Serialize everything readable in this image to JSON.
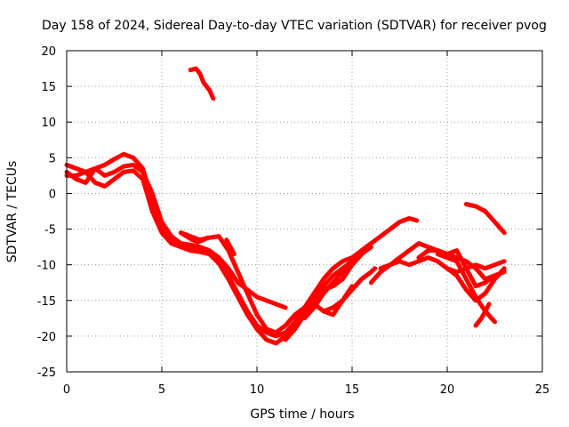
{
  "chart_data": {
    "type": "line",
    "title": "Day 158 of 2024, Sidereal Day-to-day VTEC variation (SDTVAR) for receiver pvog",
    "xlabel": "GPS time / hours",
    "ylabel": "SDTVAR / TECUs",
    "xlim": [
      0,
      25
    ],
    "ylim": [
      -25,
      20
    ],
    "xticks": [
      "0",
      "5",
      "10",
      "15",
      "20",
      "25"
    ],
    "yticks": [
      "20",
      "15",
      "10",
      "5",
      "0",
      "-5",
      "-10",
      "-15",
      "-20",
      "-25"
    ],
    "grid": true,
    "line_color": "#ff0000",
    "series": [
      {
        "name": "s1",
        "x": [
          0.0,
          0.5,
          1.0,
          1.5,
          2.0,
          2.5,
          3.0,
          3.5,
          4.0,
          4.5,
          5.0,
          5.5,
          6.0,
          6.5,
          7.0,
          7.5,
          8.0,
          8.5,
          9.0,
          9.5,
          10.0,
          10.5,
          11.0,
          11.5,
          12.0,
          12.5,
          13.0,
          13.5,
          14.0,
          14.5,
          15.0,
          15.5,
          16.0
        ],
        "y": [
          4.0,
          3.5,
          3.0,
          3.5,
          4.0,
          4.8,
          5.5,
          5.0,
          3.5,
          -1.0,
          -4.5,
          -6.5,
          -7.2,
          -7.5,
          -7.8,
          -8.5,
          -9.5,
          -11.5,
          -14.0,
          -16.5,
          -18.5,
          -19.5,
          -20.0,
          -19.5,
          -18.0,
          -16.0,
          -14.0,
          -12.0,
          -10.5,
          -9.5,
          -9.0,
          -8.0,
          -7.0
        ]
      },
      {
        "name": "s2",
        "x": [
          0.0,
          0.5,
          1.0,
          1.5,
          2.0,
          2.5,
          3.0,
          3.5,
          4.0,
          4.5,
          5.0,
          5.5,
          6.0,
          6.5,
          7.0,
          7.5,
          8.0,
          8.5,
          9.0,
          9.5,
          10.0,
          10.5,
          11.0,
          11.5,
          12.0,
          12.5,
          13.0,
          13.5,
          14.0,
          14.5,
          15.0,
          15.5,
          16.0
        ],
        "y": [
          2.5,
          2.5,
          3.0,
          1.5,
          1.0,
          2.0,
          3.0,
          3.2,
          2.0,
          -2.5,
          -5.5,
          -7.0,
          -7.5,
          -8.0,
          -8.2,
          -8.5,
          -9.8,
          -12.0,
          -14.5,
          -17.0,
          -19.0,
          -20.5,
          -21.0,
          -20.0,
          -18.0,
          -16.0,
          -15.0,
          -13.5,
          -13.0,
          -12.0,
          -10.0,
          -8.5,
          -7.5
        ]
      },
      {
        "name": "s3",
        "x": [
          0.0,
          0.5,
          1.0,
          1.5,
          2.0,
          2.5,
          3.0,
          3.5,
          4.0,
          4.5,
          5.0,
          5.5,
          6.0,
          6.5,
          7.0,
          7.5,
          8.0,
          8.5,
          9.0,
          9.5,
          10.0,
          10.5,
          11.0,
          11.5
        ],
        "y": [
          3.0,
          2.0,
          1.5,
          3.5,
          2.5,
          3.0,
          3.8,
          4.0,
          3.0,
          0.0,
          -4.0,
          -6.0,
          -7.0,
          -7.2,
          -7.5,
          -8.0,
          -9.0,
          -10.5,
          -12.5,
          -13.5,
          -14.5,
          -15.0,
          -15.5,
          -16.0
        ]
      },
      {
        "name": "s4",
        "x": [
          6.0,
          6.5,
          7.0,
          7.5,
          8.0,
          8.5,
          9.0,
          9.5,
          10.0,
          10.5,
          11.0,
          11.5,
          12.0,
          12.5,
          13.0,
          13.5,
          14.0,
          14.5,
          15.0
        ],
        "y": [
          -5.5,
          -6.0,
          -6.5,
          -6.2,
          -6.0,
          -8.0,
          -11.0,
          -14.0,
          -17.0,
          -19.0,
          -19.5,
          -18.5,
          -17.0,
          -16.0,
          -15.5,
          -16.5,
          -17.0,
          -15.0,
          -13.0
        ]
      },
      {
        "name": "s5",
        "x": [
          11.5,
          12.0,
          12.5,
          13.0,
          13.5,
          14.0,
          14.5,
          15.0,
          15.5,
          16.0,
          16.5,
          17.0,
          17.5,
          18.0,
          18.4
        ],
        "y": [
          -20.5,
          -19.0,
          -17.0,
          -15.0,
          -13.0,
          -11.5,
          -10.5,
          -9.5,
          -8.0,
          -7.0,
          -6.0,
          -5.0,
          -4.0,
          -3.5,
          -3.8
        ]
      },
      {
        "name": "s6",
        "x": [
          12.5,
          13.0,
          13.5,
          14.0,
          14.5,
          15.0,
          15.5,
          15.8
        ],
        "y": [
          -17.5,
          -16.0,
          -14.0,
          -12.5,
          -11.0,
          -10.0,
          -8.5,
          -7.5
        ]
      },
      {
        "name": "s7",
        "x": [
          13.5,
          14.0,
          14.5,
          15.0,
          15.5,
          16.0,
          16.2
        ],
        "y": [
          -16.5,
          -16.0,
          -15.0,
          -13.5,
          -12.0,
          -11.0,
          -10.5
        ]
      },
      {
        "name": "s8",
        "x": [
          16.0,
          16.5,
          17.0,
          17.5,
          18.0,
          18.5,
          19.0,
          19.5,
          20.0,
          20.5,
          21.0,
          21.5,
          22.0,
          22.5,
          23.0
        ],
        "y": [
          -12.5,
          -11.0,
          -10.0,
          -9.5,
          -10.0,
          -9.5,
          -9.0,
          -9.5,
          -10.5,
          -11.0,
          -10.5,
          -10.0,
          -10.5,
          -10.0,
          -9.5
        ]
      },
      {
        "name": "s9",
        "x": [
          16.5,
          17.0,
          17.5,
          18.0,
          18.5,
          19.0,
          19.5,
          20.0,
          20.5,
          21.0,
          21.5,
          22.0,
          22.5,
          23.0
        ],
        "y": [
          -10.5,
          -10.0,
          -9.0,
          -8.0,
          -7.0,
          -7.5,
          -8.0,
          -8.5,
          -9.0,
          -9.5,
          -10.5,
          -12.0,
          -11.5,
          -11.0
        ]
      },
      {
        "name": "s10",
        "x": [
          18.5,
          19.0,
          19.5,
          20.0,
          20.5,
          21.0,
          21.5,
          22.0,
          22.5,
          23.0
        ],
        "y": [
          -9.0,
          -8.0,
          -8.0,
          -8.5,
          -8.0,
          -10.5,
          -13.0,
          -12.5,
          -11.5,
          -11.0
        ]
      },
      {
        "name": "s11",
        "x": [
          19.5,
          20.0,
          20.5,
          21.0,
          21.5,
          22.0,
          22.5
        ],
        "y": [
          -8.5,
          -9.0,
          -9.5,
          -12.0,
          -14.5,
          -16.5,
          -18.0
        ]
      },
      {
        "name": "s12",
        "x": [
          20.0,
          20.5,
          21.0,
          21.5,
          22.0,
          22.5,
          23.0
        ],
        "y": [
          -10.5,
          -11.5,
          -13.5,
          -15.0,
          -14.0,
          -12.0,
          -10.5
        ]
      },
      {
        "name": "s13",
        "x": [
          21.5,
          21.8,
          22.0,
          22.2
        ],
        "y": [
          -18.5,
          -17.5,
          -16.5,
          -15.5
        ]
      },
      {
        "name": "s14",
        "x": [
          21.0,
          21.5,
          22.0,
          22.5,
          23.0
        ],
        "y": [
          -1.5,
          -1.8,
          -2.5,
          -4.0,
          -5.5
        ]
      },
      {
        "name": "s15",
        "x": [
          6.5,
          6.8,
          7.0,
          7.2,
          7.5,
          7.7
        ],
        "y": [
          17.3,
          17.5,
          16.8,
          15.5,
          14.5,
          13.3
        ]
      },
      {
        "name": "s16",
        "x": [
          6.0,
          6.3,
          6.6,
          6.9,
          7.2,
          7.4
        ],
        "y": [
          -5.5,
          -6.0,
          -6.5,
          -6.8,
          -6.5,
          -6.2
        ]
      },
      {
        "name": "s17",
        "x": [
          8.4,
          8.6,
          8.8
        ],
        "y": [
          -6.5,
          -7.5,
          -8.5
        ]
      }
    ]
  }
}
